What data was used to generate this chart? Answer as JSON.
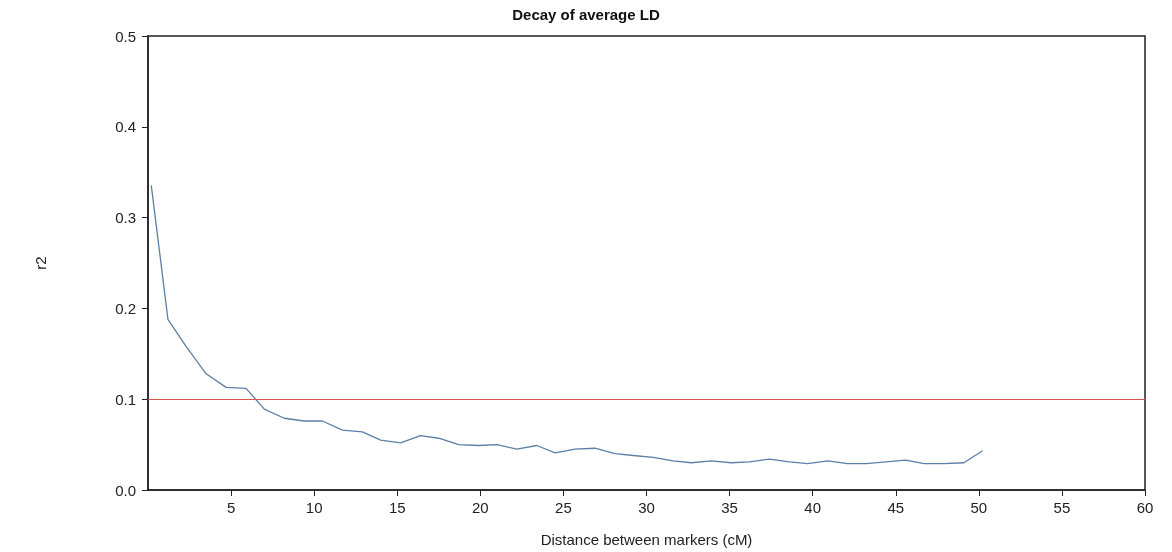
{
  "chart_data": {
    "type": "line",
    "title": "Decay of average LD",
    "xlabel": "Distance between markers (cM)",
    "ylabel": "r2",
    "x": [
      0.2,
      1.2,
      2.3,
      3.5,
      4.7,
      5.9,
      7.0,
      8.2,
      9.4,
      10.5,
      11.7,
      12.9,
      14.0,
      15.2,
      16.4,
      17.5,
      18.7,
      19.9,
      21.0,
      22.2,
      23.4,
      24.5,
      25.7,
      26.9,
      28.1,
      29.2,
      30.4,
      31.6,
      32.7,
      33.9,
      35.1,
      36.2,
      37.4,
      38.6,
      39.7,
      40.9,
      42.1,
      43.2,
      44.4,
      45.6,
      46.7,
      47.9,
      49.1,
      50.2
    ],
    "series": [
      {
        "color": "#5b7fa6",
        "values": [
          0.335,
          0.188,
          0.158,
          0.128,
          0.113,
          0.112,
          0.089,
          0.079,
          0.076,
          0.076,
          0.066,
          0.064,
          0.055,
          0.052,
          0.06,
          0.057,
          0.05,
          0.049,
          0.05,
          0.045,
          0.049,
          0.041,
          0.045,
          0.046,
          0.04,
          0.038,
          0.036,
          0.032,
          0.03,
          0.032,
          0.03,
          0.031,
          0.034,
          0.031,
          0.029,
          0.032,
          0.029,
          0.029,
          0.031,
          0.033,
          0.029,
          0.029,
          0.03,
          0.043
        ]
      }
    ],
    "xlim": [
      0,
      60
    ],
    "xticks": [
      5,
      10,
      15,
      20,
      25,
      30,
      35,
      40,
      45,
      50,
      55,
      60
    ],
    "ylim": [
      0,
      0.5
    ],
    "yticks": [
      {
        "value": 0,
        "label": "0.0"
      },
      0.1,
      0.2,
      0.3,
      0.4,
      0.5
    ],
    "ref_lines": [
      {
        "axis": "y",
        "value": 0.1,
        "color": "#d9534f"
      }
    ],
    "grid": false,
    "marker": "none",
    "line_style": "solid"
  }
}
